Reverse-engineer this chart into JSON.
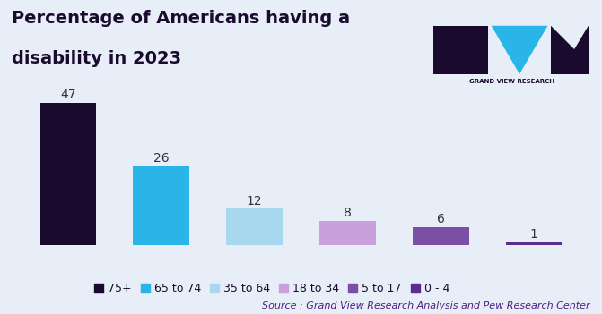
{
  "categories": [
    "75+",
    "65 to 74",
    "35 to 64",
    "18 to 34",
    "5 to 17",
    "0 - 4"
  ],
  "values": [
    47,
    26,
    12,
    8,
    6,
    1
  ],
  "bar_colors": [
    "#1a0a2e",
    "#29b5e8",
    "#a8d8f0",
    "#c9a0dc",
    "#7b4fa6",
    "#5b2d8e"
  ],
  "title_line1": "Percentage of Americans having a",
  "title_line2": "disability in 2023",
  "title_color": "#1a0a2e",
  "title_fontsize": 14,
  "label_fontsize": 10,
  "legend_fontsize": 9,
  "source_text": "Source : Grand View Research Analysis and Pew Research Center",
  "source_fontsize": 8,
  "background_color": "#e8eef8",
  "ylim": [
    0,
    52
  ],
  "bar_width": 0.6
}
